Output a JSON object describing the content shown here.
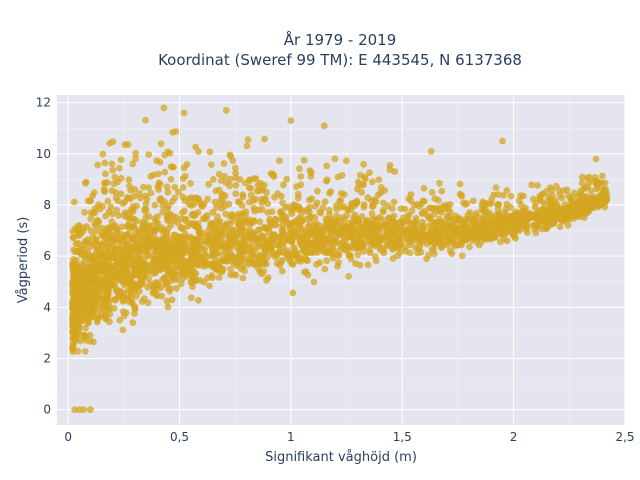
{
  "chart_data": {
    "type": "scatter",
    "title_line1": "År 1979 - 2019",
    "title_line2": "Koordinat (Sweref 99 TM): E 443545, N 6137368",
    "xlabel": "Signifikant våghöjd (m)",
    "ylabel": "Vågperiod (s)",
    "xlim": [
      -0.05,
      2.5
    ],
    "ylim": [
      -0.6,
      12.3
    ],
    "xticks": [
      0,
      0.5,
      1,
      1.5,
      2,
      2.5
    ],
    "xtick_labels": [
      "0",
      "0,5",
      "1",
      "1,5",
      "2",
      "2,5"
    ],
    "yticks": [
      0,
      2,
      4,
      6,
      8,
      10,
      12
    ],
    "ytick_labels": [
      "0",
      "2",
      "4",
      "6",
      "8",
      "10",
      "12"
    ],
    "grid": true,
    "marker_color": "#d4a520",
    "plot_bg": "#e5e5f0",
    "envelope": {
      "description_points_x": [
        0.02,
        0.05,
        0.1,
        0.2,
        0.3,
        0.5,
        0.75,
        1.0,
        1.25,
        1.5,
        1.75,
        2.0,
        2.25,
        2.42
      ],
      "upper_y": [
        8.6,
        9.6,
        10.5,
        11.8,
        11.7,
        11.6,
        11.3,
        10.8,
        10.4,
        9.7,
        9.1,
        9.3,
        9.4,
        9.8
      ],
      "lower_y": [
        1.0,
        1.1,
        1.2,
        1.8,
        2.4,
        3.2,
        3.8,
        4.3,
        4.8,
        5.3,
        5.7,
        6.2,
        6.8,
        7.5
      ]
    },
    "outliers": [
      {
        "x": 0.03,
        "y": 0
      },
      {
        "x": 0.05,
        "y": 0
      },
      {
        "x": 0.07,
        "y": 0
      },
      {
        "x": 0.1,
        "y": 0
      },
      {
        "x": 0.43,
        "y": 11.8
      },
      {
        "x": 0.52,
        "y": 11.6
      },
      {
        "x": 0.71,
        "y": 11.7
      },
      {
        "x": 1.0,
        "y": 11.3
      },
      {
        "x": 1.15,
        "y": 11.1
      },
      {
        "x": 1.63,
        "y": 10.1
      },
      {
        "x": 1.95,
        "y": 10.5
      },
      {
        "x": 2.37,
        "y": 9.8
      }
    ]
  }
}
